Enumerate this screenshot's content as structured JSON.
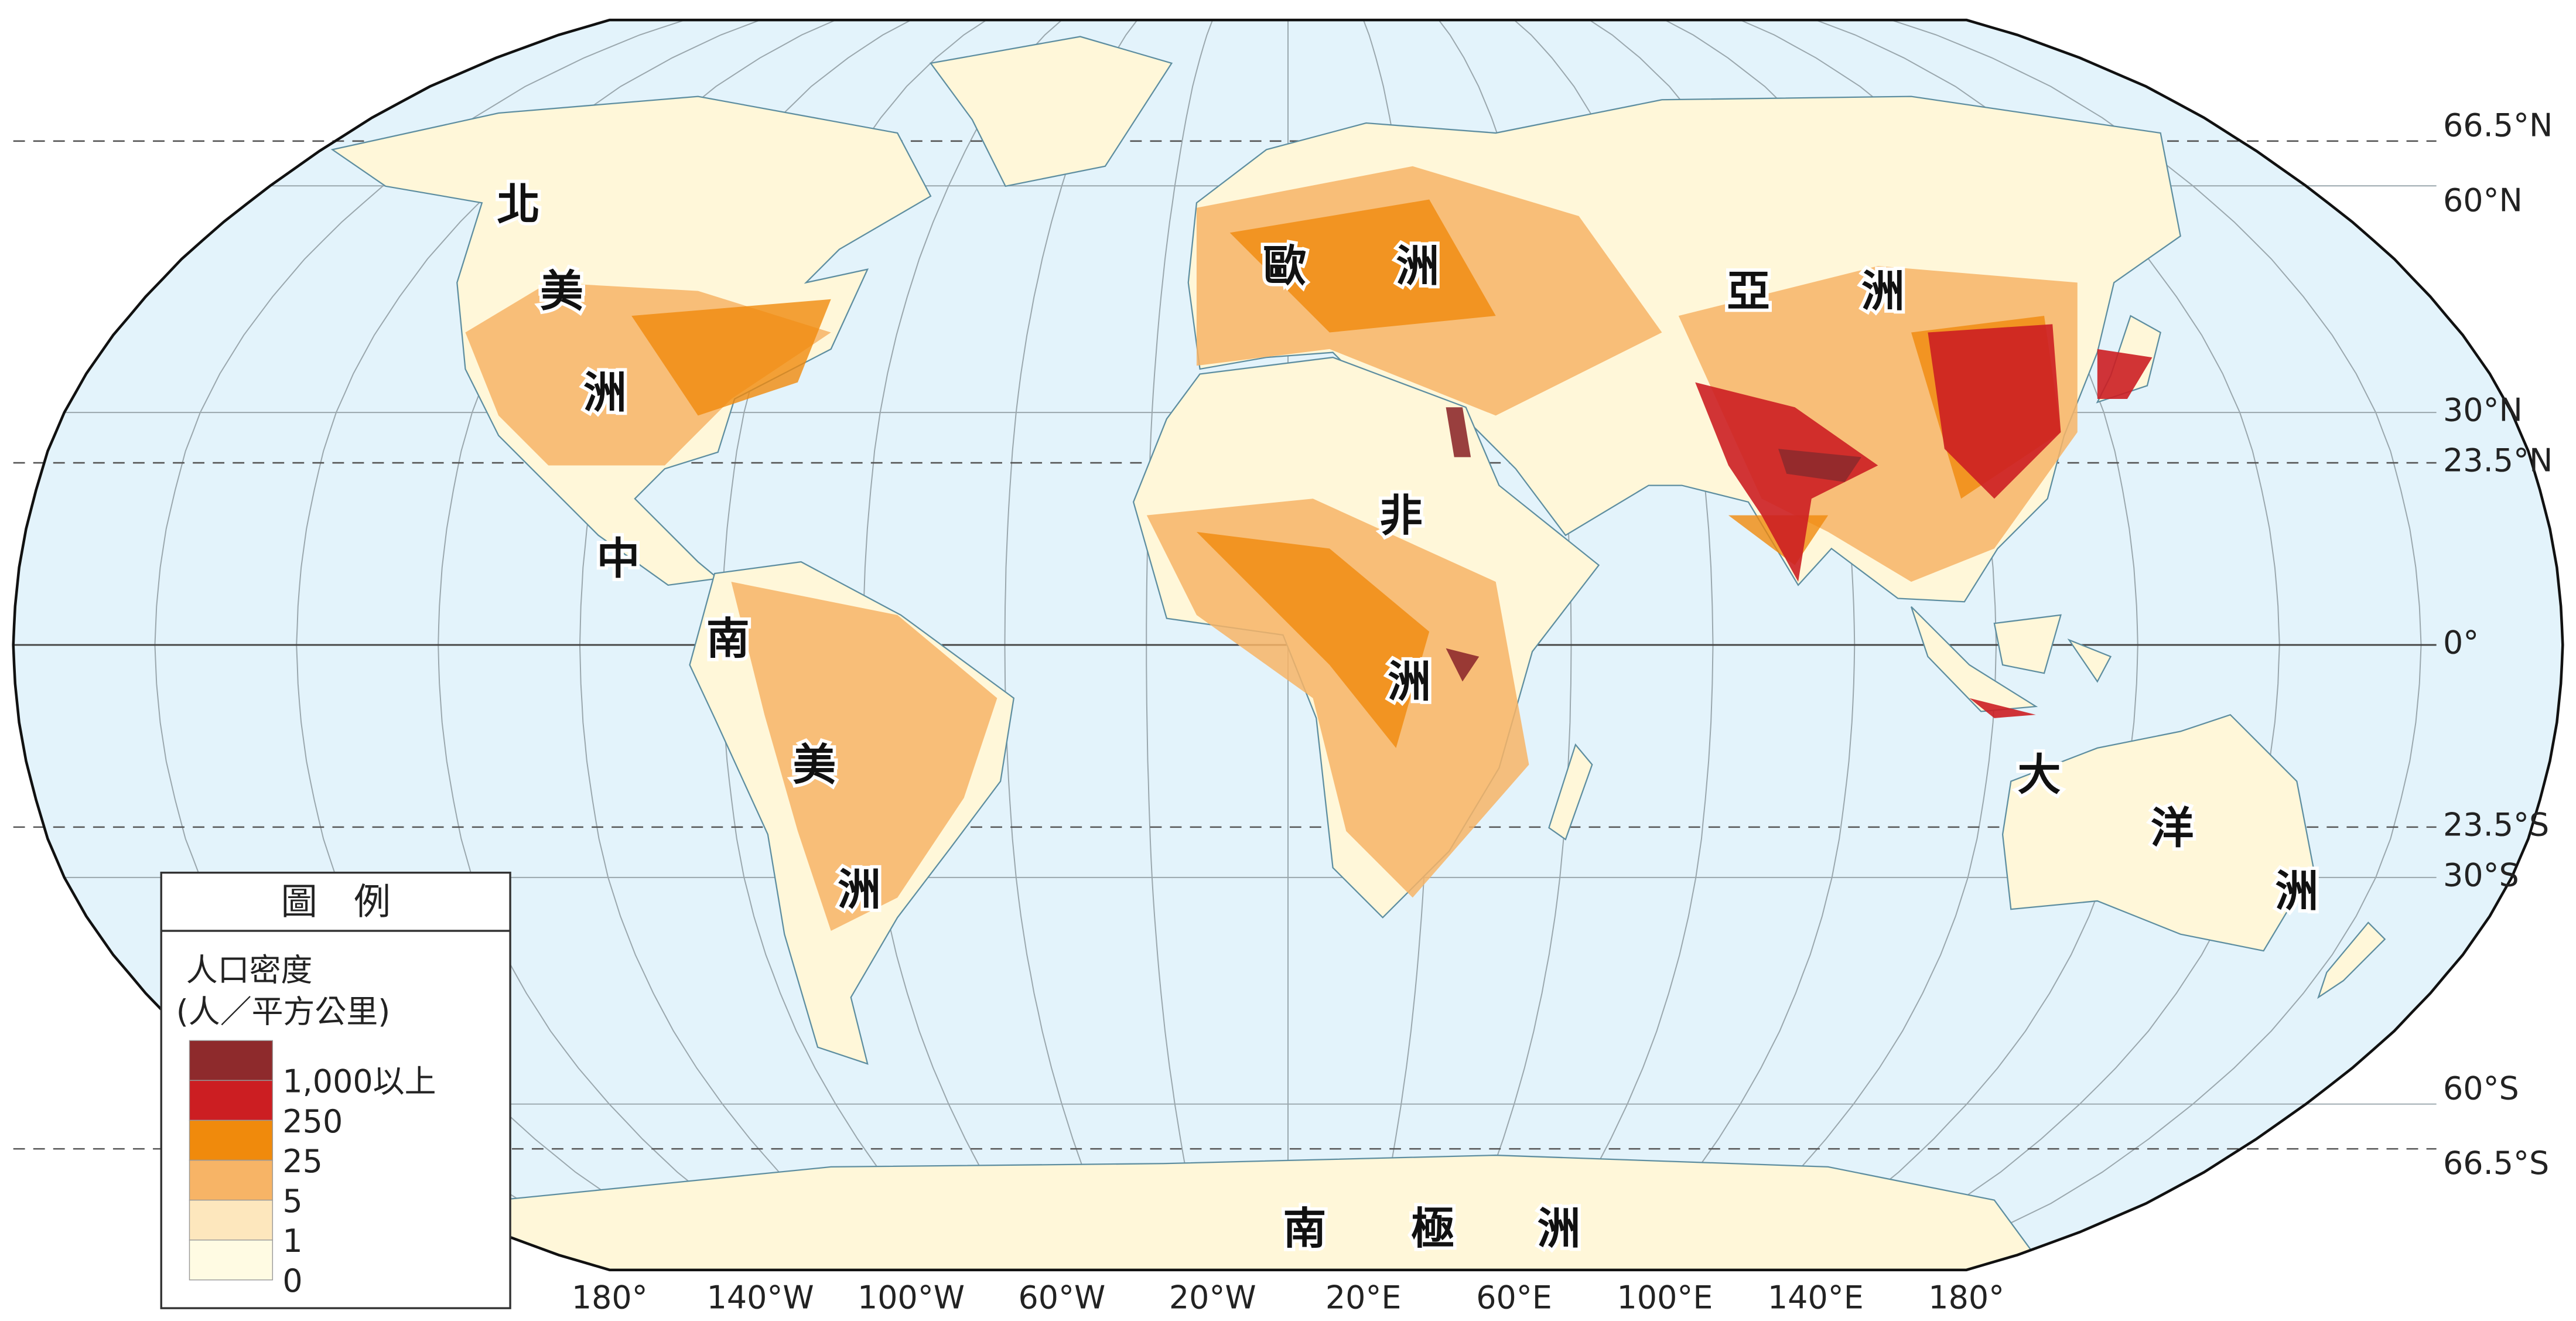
{
  "map": {
    "continents": [
      {
        "chars": [
          "北",
          "美",
          "洲"
        ]
      },
      {
        "chars": [
          "中",
          "南",
          "美",
          "洲"
        ]
      },
      {
        "chars": [
          "歐",
          "洲"
        ]
      },
      {
        "chars": [
          "亞",
          "洲"
        ]
      },
      {
        "chars": [
          "非",
          "洲"
        ]
      },
      {
        "chars": [
          "大",
          "洋",
          "洲"
        ]
      },
      {
        "chars": [
          "南",
          "極",
          "洲"
        ]
      }
    ],
    "latitude_labels": [
      "66.5°N",
      "60°N",
      "30°N",
      "23.5°N",
      "0°",
      "23.5°S",
      "30°S",
      "60°S",
      "66.5°S"
    ],
    "longitude_labels": [
      "180°",
      "140°W",
      "100°W",
      "60°W",
      "20°W",
      "20°E",
      "60°E",
      "100°E",
      "140°E",
      "180°"
    ],
    "legend": {
      "title": "圖　例",
      "heading": "人口密度",
      "unit": "(人／平方公里)",
      "classes": [
        {
          "label": "1,000以上",
          "color": "#8e2a2c"
        },
        {
          "label": "250",
          "color": "#cc1e22"
        },
        {
          "label": "25",
          "color": "#f08a0c"
        },
        {
          "label": "5",
          "color": "#f7b466"
        },
        {
          "label": "1",
          "color": "#fde7bd"
        },
        {
          "label": "0",
          "color": "#fffbe3"
        }
      ]
    }
  }
}
